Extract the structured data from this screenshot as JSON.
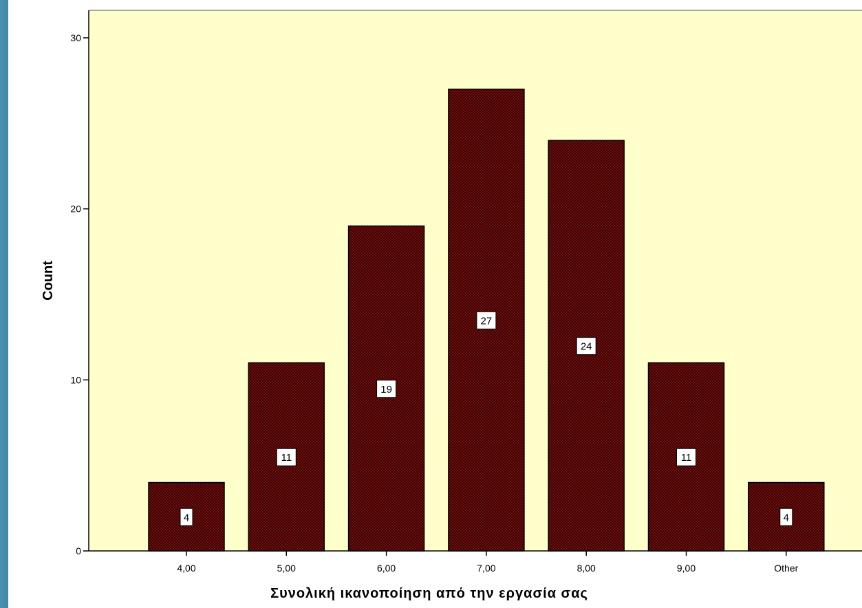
{
  "chart_data": {
    "type": "bar",
    "categories": [
      "4,00",
      "5,00",
      "6,00",
      "7,00",
      "8,00",
      "9,00",
      "Other"
    ],
    "values": [
      4,
      11,
      19,
      27,
      24,
      11,
      4
    ],
    "data_labels": [
      "4",
      "11",
      "19",
      "27",
      "24",
      "11",
      "4"
    ],
    "xlabel": "Συνολική ικανοποίηση από την εργασία σας",
    "ylabel": "Count",
    "ylim": [
      0,
      30
    ],
    "yticks": [
      0,
      10,
      20,
      30
    ],
    "ytick_labels": [
      "0",
      "10",
      "20",
      "30"
    ],
    "grid": false,
    "colors": {
      "plot_background": "#ffffcc",
      "bar_fill": "#8b1a1a",
      "bar_pattern": "#3a0000",
      "bar_outline": "#000000",
      "label_box": "#ffffff"
    }
  }
}
